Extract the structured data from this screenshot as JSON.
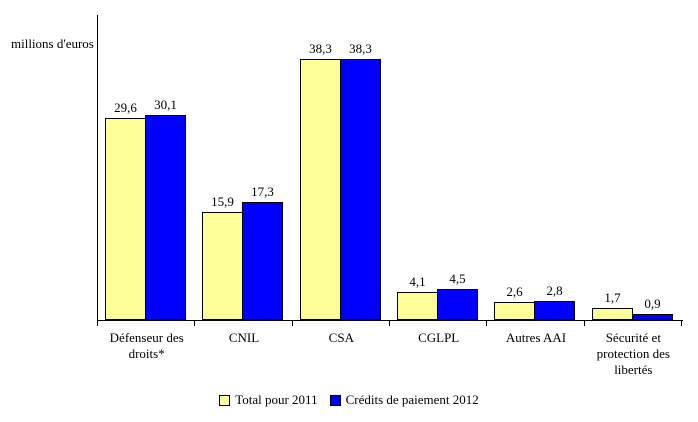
{
  "chart_data": {
    "type": "bar",
    "title": "",
    "ylabel": "millions d'euros",
    "xlabel": "",
    "categories": [
      "Défenseur des droits*",
      "CNIL",
      "CSA",
      "CGLPL",
      "Autres AAI",
      "Sécurité et protection des libertés"
    ],
    "series": [
      {
        "name": "Total pour 2011",
        "color": "#FFFF99",
        "values": [
          29.6,
          15.9,
          38.3,
          4.1,
          2.6,
          1.7
        ]
      },
      {
        "name": "Crédits de paiement 2012",
        "color": "#0000FF",
        "values": [
          30.1,
          17.3,
          38.3,
          4.5,
          2.8,
          0.9
        ]
      }
    ],
    "value_label_format": "decimal-comma",
    "ylim": [
      0,
      40
    ],
    "grid": false,
    "legend_position": "bottom",
    "bar_border_color": "#000000",
    "axis_color": "#000000"
  }
}
